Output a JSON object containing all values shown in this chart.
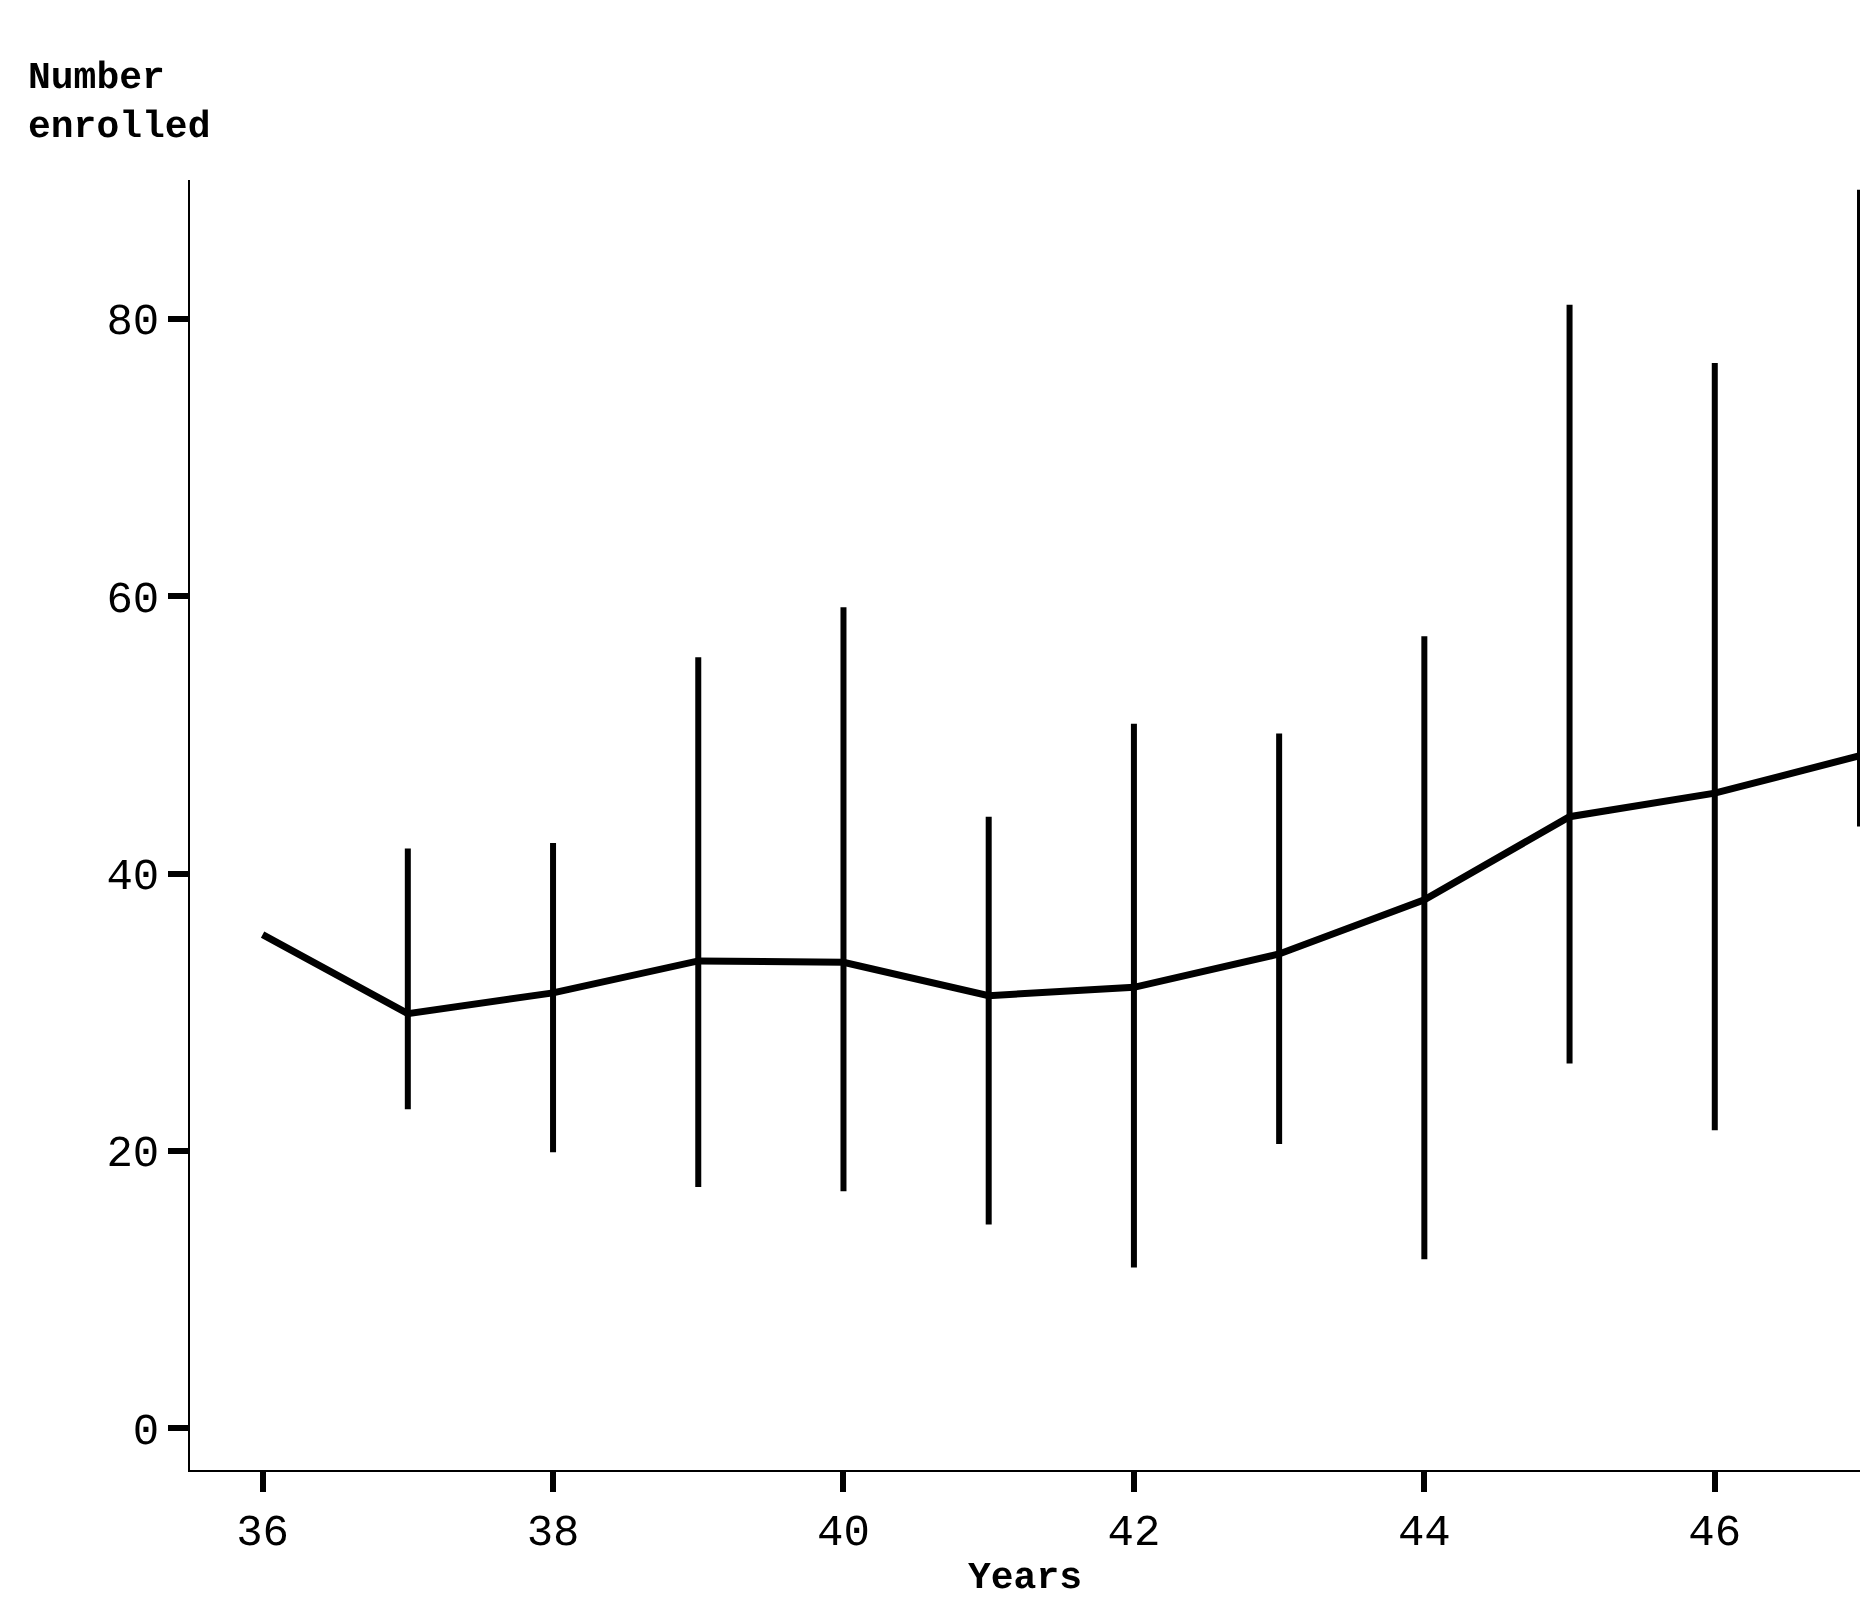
{
  "chart_data": {
    "type": "line",
    "xlabel": "Years",
    "annotations": [
      "Number enrolled"
    ],
    "x": [
      36,
      37,
      38,
      39,
      40,
      41,
      42,
      43,
      44,
      45,
      46,
      47
    ],
    "series": [
      {
        "color": "#000000",
        "values": [
          35.6,
          29.9,
          31.4,
          33.7,
          33.6,
          31.2,
          31.8,
          34.2,
          38.1,
          44.1,
          45.8,
          48.5
        ],
        "errors": [
          null,
          [
            23.0,
            41.8
          ],
          [
            19.9,
            42.2
          ],
          [
            17.4,
            55.6
          ],
          [
            17.1,
            59.2
          ],
          [
            14.7,
            44.1
          ],
          [
            11.6,
            50.8
          ],
          [
            20.5,
            50.1
          ],
          [
            12.2,
            57.1
          ],
          [
            26.3,
            81.0
          ],
          [
            21.5,
            76.8
          ],
          [
            43.4,
            89.3
          ]
        ]
      }
    ],
    "xlim": [
      35.5,
      47
    ],
    "xticks": [
      36,
      38,
      40,
      42,
      44,
      46
    ],
    "ylim": [
      -3,
      90
    ],
    "yticks": [
      0,
      20,
      40,
      60,
      80
    ]
  }
}
